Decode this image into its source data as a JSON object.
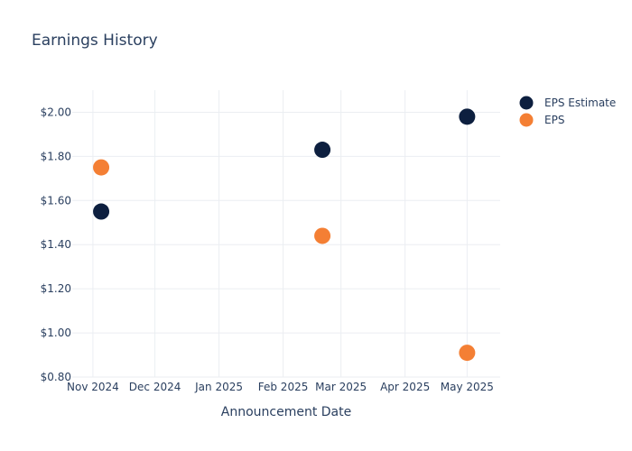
{
  "chart_data": {
    "type": "scatter",
    "title": "Earnings History",
    "xlabel": "Announcement Date",
    "ylabel": "",
    "x_ticks": [
      "Nov 2024",
      "Dec 2024",
      "Jan 2025",
      "Feb 2025",
      "Mar 2025",
      "Apr 2025",
      "May 2025"
    ],
    "x_tick_dates": [
      "2024-11-01",
      "2024-12-01",
      "2025-01-01",
      "2025-02-01",
      "2025-03-01",
      "2025-04-01",
      "2025-05-01"
    ],
    "xlim": [
      "2024-10-22",
      "2025-05-17"
    ],
    "y_ticks": [
      "$0.80",
      "$1.00",
      "$1.20",
      "$1.40",
      "$1.60",
      "$1.80",
      "$2.00"
    ],
    "y_tick_values": [
      0.8,
      1.0,
      1.2,
      1.4,
      1.6,
      1.8,
      2.0
    ],
    "ylim": [
      0.8,
      2.1
    ],
    "grid": true,
    "legend_position": "top-right",
    "series": [
      {
        "name": "EPS Estimate",
        "color": "#0d1f3f",
        "points": [
          {
            "x": "2024-11-05",
            "y": 1.55
          },
          {
            "x": "2025-02-20",
            "y": 1.83
          },
          {
            "x": "2025-05-01",
            "y": 1.98
          }
        ]
      },
      {
        "name": "EPS",
        "color": "#f47f34",
        "points": [
          {
            "x": "2024-11-05",
            "y": 1.75
          },
          {
            "x": "2025-02-20",
            "y": 1.44
          },
          {
            "x": "2025-05-01",
            "y": 0.91
          }
        ]
      }
    ]
  }
}
